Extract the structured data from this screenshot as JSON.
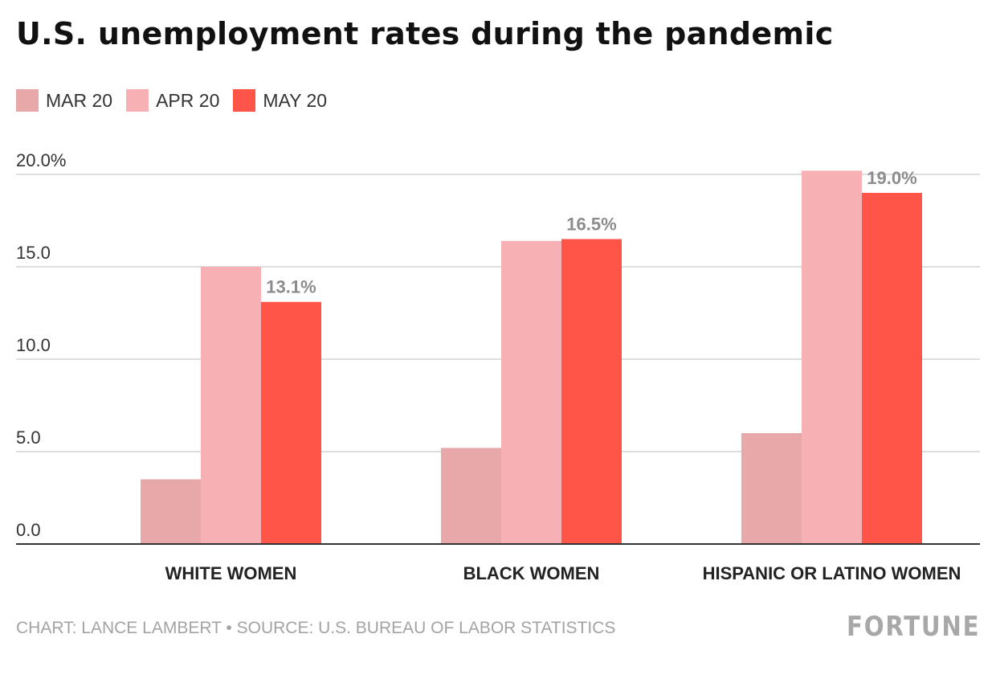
{
  "chart_data": {
    "type": "bar",
    "title": "U.S. unemployment rates during the pandemic",
    "categories": [
      "WHITE WOMEN",
      "BLACK WOMEN",
      "HISPANIC OR LATINO WOMEN"
    ],
    "series": [
      {
        "name": "MAR 20",
        "color": "#e8a7a8",
        "values": [
          3.5,
          5.2,
          6.0
        ]
      },
      {
        "name": "APR 20",
        "color": "#f7b0b3",
        "values": [
          15.0,
          16.4,
          20.2
        ]
      },
      {
        "name": "MAY 20",
        "color": "#ff5548",
        "values": [
          13.1,
          16.5,
          19.0
        ]
      }
    ],
    "data_labels": {
      "series": "MAY 20",
      "labels": [
        "13.1%",
        "16.5%",
        "19.0%"
      ]
    },
    "y_ticks": [
      {
        "value": 0,
        "label": "0.0"
      },
      {
        "value": 5,
        "label": "5.0"
      },
      {
        "value": 10,
        "label": "10.0"
      },
      {
        "value": 15,
        "label": "15.0"
      },
      {
        "value": 20,
        "label": "20.0%"
      }
    ],
    "ylim": [
      0,
      20
    ],
    "grid": true,
    "legend_position": "top-left",
    "colors": {
      "gridline": "#d3d3d3",
      "baseline": "#333333",
      "tick_label": "#333333",
      "category_label": "#222222",
      "data_label": "#8c8c8c"
    }
  },
  "footer": {
    "source": "CHART: LANCE LAMBERT • SOURCE: U.S. BUREAU OF LABOR STATISTICS",
    "brand": "FORTUNE"
  }
}
